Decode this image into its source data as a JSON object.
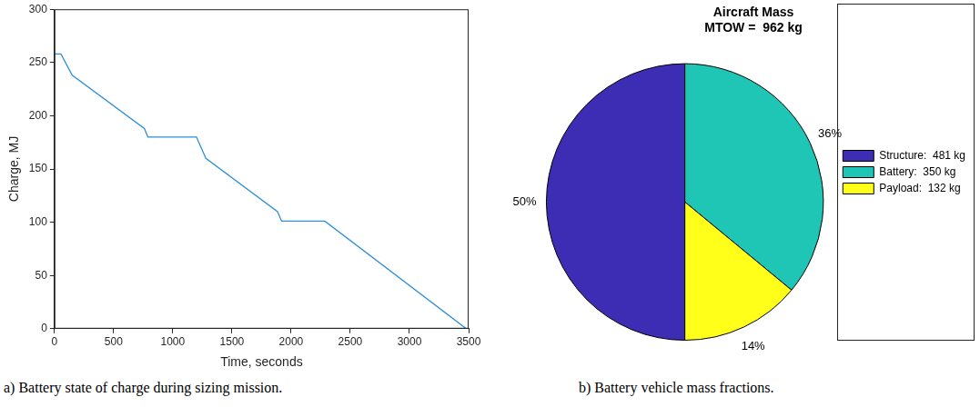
{
  "chart_data": [
    {
      "type": "line",
      "caption": "a) Battery state of charge during sizing mission.",
      "xlabel": "Time, seconds",
      "ylabel": "Charge, MJ",
      "x": [
        0,
        55,
        150,
        760,
        790,
        1200,
        1280,
        1885,
        1920,
        2285,
        3480
      ],
      "values": [
        258,
        258,
        238,
        188,
        180,
        180,
        160,
        110,
        101,
        101,
        0
      ],
      "color": "#2e8fd8",
      "xlim": [
        0,
        3500
      ],
      "xticks": [
        0,
        500,
        1000,
        1500,
        2000,
        2500,
        3000,
        3500
      ],
      "ylim": [
        0,
        300
      ],
      "yticks": [
        0,
        50,
        100,
        150,
        200,
        250,
        300
      ],
      "grid": false
    },
    {
      "type": "pie",
      "caption": "b) Battery vehicle mass fractions.",
      "title": "Aircraft Mass",
      "subtitle": "MTOW =  962 kg",
      "categories": [
        "Structure:  481 kg",
        "Battery:  350 kg",
        "Payload:  132 kg"
      ],
      "values": [
        50,
        36,
        14
      ],
      "value_labels": [
        "50%",
        "36%",
        "14%"
      ],
      "data_labels": true,
      "colors": [
        "#3d2db4",
        "#1fc6b6",
        "#ffff19"
      ],
      "legend": "right"
    }
  ]
}
